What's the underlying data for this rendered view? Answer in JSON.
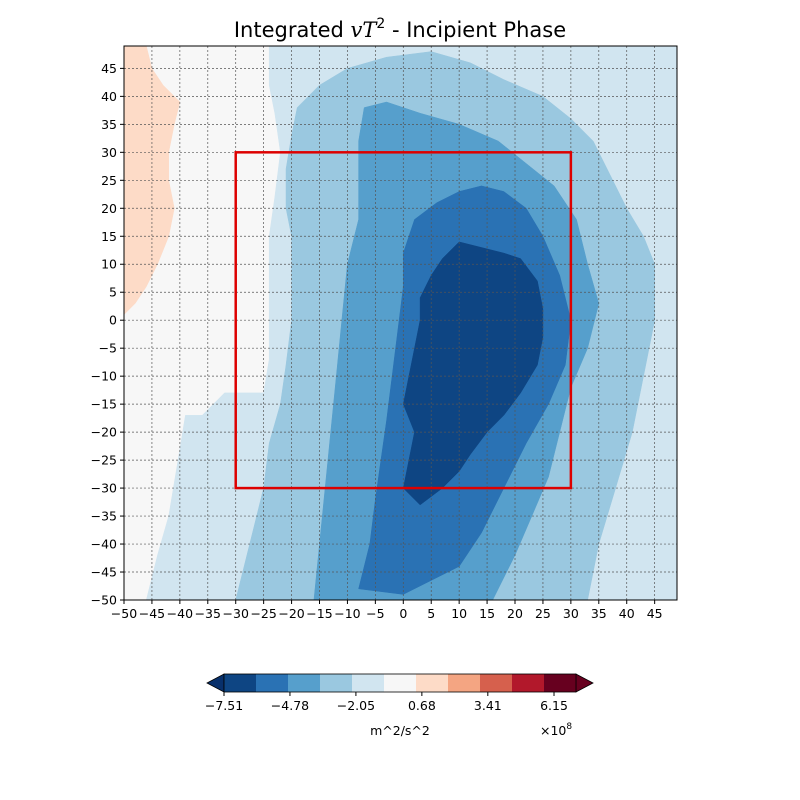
{
  "chart_data": {
    "type": "contourf",
    "title": {
      "prefix": "Integrated ",
      "italic": "vT",
      "sup": "2",
      "suffix": " - Incipient Phase"
    },
    "xlabel": "",
    "ylabel": "",
    "xlim": [
      -50,
      49
    ],
    "ylim": [
      -50,
      49
    ],
    "xticks": [
      -50,
      -45,
      -40,
      -35,
      -30,
      -25,
      -20,
      -15,
      -10,
      -5,
      0,
      5,
      10,
      15,
      20,
      25,
      30,
      35,
      40,
      45
    ],
    "yticks": [
      -50,
      -45,
      -40,
      -35,
      -30,
      -25,
      -20,
      -15,
      -10,
      -5,
      0,
      5,
      10,
      15,
      20,
      25,
      30,
      35,
      40,
      45
    ],
    "grid": true,
    "levels": [
      -8.42,
      -7.51,
      -6.6,
      -5.69,
      -4.78,
      -3.87,
      -2.96,
      -2.05,
      -1.14,
      -0.23,
      0.68,
      1.59,
      2.5,
      3.41,
      4.32,
      5.23,
      6.15,
      7.06
    ],
    "level_colors": [
      "#0e4583",
      "#2a72b4",
      "#569fcc",
      "#9ac8e0",
      "#d1e5f0",
      "#f7f7f7",
      "#fddbc7",
      "#f4a582",
      "#d6604d",
      "#b2182b",
      "#67001f"
    ],
    "region_box": {
      "x": [
        -30,
        30
      ],
      "y": [
        -30,
        30
      ],
      "color": "#dd0000"
    },
    "colorbar": {
      "tick_values": [
        -7.51,
        -4.78,
        -2.05,
        0.68,
        3.41,
        6.15
      ],
      "tick_labels": [
        "−7.51",
        "−4.78",
        "−2.05",
        "0.68",
        "3.41",
        "6.15"
      ],
      "label": "m^2/s^2",
      "multiplier": "×10",
      "multiplier_exp": "8",
      "colors": [
        "#0e4583",
        "#2a72b4",
        "#569fcc",
        "#9ac8e0",
        "#d1e5f0",
        "#f7f7f7",
        "#fddbc7",
        "#f4a582",
        "#d6604d",
        "#b2182b",
        "#67001f"
      ],
      "extend": "both",
      "min_color": "#08306b",
      "max_color": "#67001f"
    },
    "regions": [
      {
        "level": "-0.23 to 0.68",
        "color": "#f7f7f7",
        "polygon": [
          [
            -50,
            -50
          ],
          [
            49,
            -50
          ],
          [
            49,
            49
          ],
          [
            -50,
            49
          ]
        ]
      },
      {
        "level": "0.68 to 1.59",
        "color": "#fddbc7",
        "polygon": [
          [
            -50,
            1
          ],
          [
            -48,
            3
          ],
          [
            -46,
            6
          ],
          [
            -44,
            10
          ],
          [
            -42,
            15
          ],
          [
            -41,
            20
          ],
          [
            -42,
            25
          ],
          [
            -42,
            30
          ],
          [
            -41,
            35
          ],
          [
            -40,
            39
          ],
          [
            -43,
            42
          ],
          [
            -45,
            45
          ],
          [
            -46,
            49
          ],
          [
            -50,
            49
          ]
        ]
      },
      {
        "level": "-1.14 to -0.23",
        "color": "#d1e5f0",
        "polygon": [
          [
            -46,
            -50
          ],
          [
            -44,
            -42
          ],
          [
            -42,
            -35
          ],
          [
            -41,
            -29
          ],
          [
            -40,
            -23
          ],
          [
            -39,
            -17
          ],
          [
            -36,
            -17
          ],
          [
            -34,
            -15
          ],
          [
            -32,
            -13
          ],
          [
            -28,
            -13
          ],
          [
            -25,
            -13
          ],
          [
            -24,
            -7
          ],
          [
            -24,
            0
          ],
          [
            -24,
            8
          ],
          [
            -24,
            15
          ],
          [
            -23,
            22
          ],
          [
            -22,
            30
          ],
          [
            -23,
            37
          ],
          [
            -24,
            42
          ],
          [
            -24,
            49
          ],
          [
            49,
            49
          ],
          [
            49,
            -50
          ]
        ]
      },
      {
        "level": "-2.05 to -1.14",
        "color": "#9ac8e0",
        "polygon": [
          [
            -30,
            -50
          ],
          [
            -29,
            -46
          ],
          [
            -27,
            -38
          ],
          [
            -25,
            -30
          ],
          [
            -24,
            -22
          ],
          [
            -22,
            -15
          ],
          [
            -21,
            -8
          ],
          [
            -20,
            0
          ],
          [
            -20,
            8
          ],
          [
            -20,
            15
          ],
          [
            -21,
            20
          ],
          [
            -21,
            27
          ],
          [
            -20,
            33
          ],
          [
            -19,
            38
          ],
          [
            -15,
            42
          ],
          [
            -10,
            45
          ],
          [
            -3,
            47
          ],
          [
            5,
            48
          ],
          [
            12,
            46
          ],
          [
            18,
            43
          ],
          [
            25,
            40
          ],
          [
            30,
            36
          ],
          [
            34,
            32
          ],
          [
            37,
            26
          ],
          [
            40,
            20
          ],
          [
            43,
            15
          ],
          [
            45,
            10
          ],
          [
            45,
            0
          ],
          [
            43,
            -10
          ],
          [
            41,
            -20
          ],
          [
            38,
            -30
          ],
          [
            35,
            -40
          ],
          [
            33,
            -50
          ]
        ]
      },
      {
        "level": "-2.96 to -2.05",
        "color": "#569fcc",
        "polygon": [
          [
            -16,
            -50
          ],
          [
            -15,
            -40
          ],
          [
            -14,
            -30
          ],
          [
            -13,
            -20
          ],
          [
            -12,
            -10
          ],
          [
            -11,
            0
          ],
          [
            -10,
            10
          ],
          [
            -8,
            18
          ],
          [
            -8,
            25
          ],
          [
            -8,
            32
          ],
          [
            -7,
            38
          ],
          [
            -3,
            39
          ],
          [
            3,
            37
          ],
          [
            10,
            35
          ],
          [
            17,
            32
          ],
          [
            22,
            28
          ],
          [
            27,
            24
          ],
          [
            31,
            18
          ],
          [
            33,
            10
          ],
          [
            35,
            3
          ],
          [
            33,
            -5
          ],
          [
            30,
            -12
          ],
          [
            28,
            -20
          ],
          [
            26,
            -28
          ],
          [
            23,
            -35
          ],
          [
            20,
            -42
          ],
          [
            16,
            -50
          ]
        ]
      },
      {
        "level": "-3.87 to -2.96",
        "color": "#2a72b4",
        "polygon": [
          [
            -8,
            -48
          ],
          [
            -6,
            -40
          ],
          [
            -5,
            -32
          ],
          [
            -4,
            -25
          ],
          [
            -3,
            -18
          ],
          [
            -2,
            -10
          ],
          [
            -1,
            -2
          ],
          [
            0,
            6
          ],
          [
            0,
            12
          ],
          [
            2,
            18
          ],
          [
            6,
            21
          ],
          [
            10,
            23
          ],
          [
            14,
            24
          ],
          [
            18,
            23
          ],
          [
            22,
            20
          ],
          [
            25,
            15
          ],
          [
            28,
            8
          ],
          [
            30,
            0
          ],
          [
            29,
            -8
          ],
          [
            26,
            -15
          ],
          [
            22,
            -22
          ],
          [
            18,
            -30
          ],
          [
            14,
            -38
          ],
          [
            10,
            -44
          ],
          [
            4,
            -47
          ],
          [
            0,
            -49
          ]
        ]
      },
      {
        "level": "-4.78 to -3.87",
        "color": "#0e4583",
        "polygon": [
          [
            0,
            -30
          ],
          [
            1,
            -25
          ],
          [
            2,
            -20
          ],
          [
            0,
            -15
          ],
          [
            1,
            -10
          ],
          [
            2,
            -5
          ],
          [
            3,
            0
          ],
          [
            3,
            4
          ],
          [
            4,
            6
          ],
          [
            5,
            8
          ],
          [
            7,
            11
          ],
          [
            10,
            14
          ],
          [
            14,
            13
          ],
          [
            18,
            12
          ],
          [
            21,
            11
          ],
          [
            24,
            7
          ],
          [
            25,
            2
          ],
          [
            25,
            -3
          ],
          [
            24,
            -8
          ],
          [
            21,
            -13
          ],
          [
            18,
            -17
          ],
          [
            15,
            -20
          ],
          [
            12,
            -24
          ],
          [
            10,
            -27
          ],
          [
            7,
            -30
          ],
          [
            3,
            -33
          ]
        ]
      },
      {
        "level": "-1.14 to -0.23",
        "color": "#d1e5f0",
        "polygon": [
          [
            -32,
            -43
          ],
          [
            -31,
            -40
          ],
          [
            -29,
            -40
          ],
          [
            -29,
            -43
          ]
        ]
      }
    ]
  }
}
